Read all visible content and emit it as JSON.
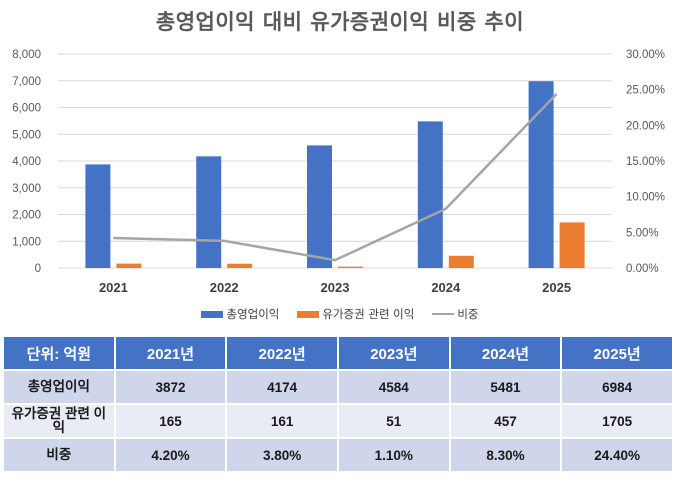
{
  "chart_data": {
    "type": "bar",
    "title": "총영업이익 대비 유가증권이익 비중 추이",
    "categories": [
      "2021",
      "2022",
      "2023",
      "2024",
      "2025"
    ],
    "series": [
      {
        "name": "총영업이익",
        "type": "bar",
        "axis": "left",
        "color": "#4472c4",
        "values": [
          3872,
          4174,
          4584,
          5481,
          6984
        ]
      },
      {
        "name": "유가증권 관련 이익",
        "type": "bar",
        "axis": "left",
        "color": "#ed7d31",
        "values": [
          165,
          161,
          51,
          457,
          1705
        ]
      },
      {
        "name": "비중",
        "type": "line",
        "axis": "right",
        "color": "#a5a5a5",
        "values": [
          4.2,
          3.8,
          1.1,
          8.3,
          24.4
        ]
      }
    ],
    "y_left": {
      "min": 0,
      "max": 8000,
      "step": 1000,
      "tick_labels": [
        "0",
        "1,000",
        "2,000",
        "3,000",
        "4,000",
        "5,000",
        "6,000",
        "7,000",
        "8,000"
      ]
    },
    "y_right": {
      "min": 0,
      "max": 30,
      "step": 5,
      "tick_labels": [
        "0.00%",
        "5.00%",
        "10.00%",
        "15.00%",
        "20.00%",
        "25.00%",
        "30.00%"
      ]
    },
    "grid": true,
    "legend_position": "bottom",
    "xlabel": "",
    "ylabel": ""
  },
  "legend": [
    {
      "label": "총영업이익",
      "kind": "bar",
      "color": "#4472c4"
    },
    {
      "label": "유가증권 관련 이익",
      "kind": "bar",
      "color": "#ed7d31"
    },
    {
      "label": "비중",
      "kind": "line",
      "color": "#a5a5a5"
    }
  ],
  "table": {
    "header": [
      "단위: 억원",
      "2021년",
      "2022년",
      "2023년",
      "2024년",
      "2025년"
    ],
    "rows": [
      {
        "label": "총영업이익",
        "cells": [
          "3872",
          "4174",
          "4584",
          "5481",
          "6984"
        ]
      },
      {
        "label": "유가증권 관련 이익",
        "cells": [
          "165",
          "161",
          "51",
          "457",
          "1705"
        ]
      },
      {
        "label": "비중",
        "cells": [
          "4.20%",
          "3.80%",
          "1.10%",
          "8.30%",
          "24.40%"
        ]
      }
    ]
  }
}
